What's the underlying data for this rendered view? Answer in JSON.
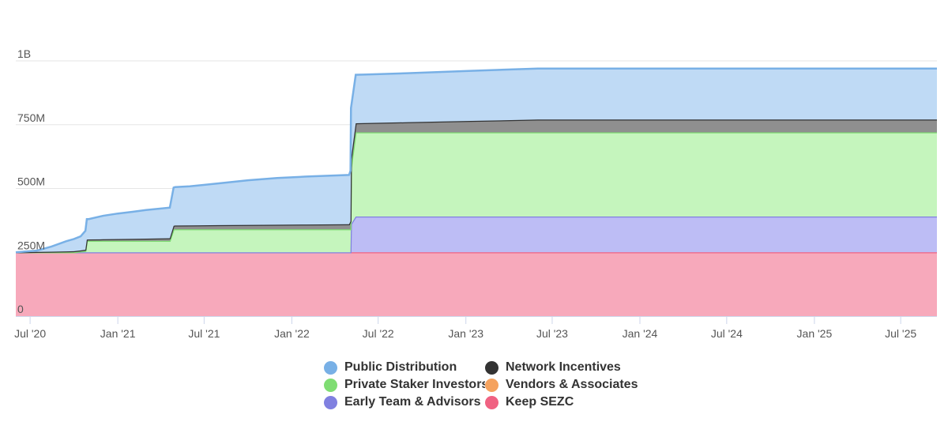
{
  "chart_data": {
    "type": "area",
    "stacked": true,
    "x_type": "date",
    "y_ticks": [
      {
        "value": 0,
        "label": "0"
      },
      {
        "value": 250000000,
        "label": "250M"
      },
      {
        "value": 500000000,
        "label": "500M"
      },
      {
        "value": 750000000,
        "label": "750M"
      },
      {
        "value": 1000000000,
        "label": "1B"
      }
    ],
    "ylim": [
      0,
      1000000000
    ],
    "xlim": [
      "2020-06-01",
      "2025-09-15"
    ],
    "x_ticks": [
      {
        "date": "2020-07-01",
        "label": "Jul '20"
      },
      {
        "date": "2021-01-01",
        "label": "Jan '21"
      },
      {
        "date": "2021-07-01",
        "label": "Jul '21"
      },
      {
        "date": "2022-01-01",
        "label": "Jan '22"
      },
      {
        "date": "2022-07-01",
        "label": "Jul '22"
      },
      {
        "date": "2023-01-01",
        "label": "Jan '23"
      },
      {
        "date": "2023-07-01",
        "label": "Jul '23"
      },
      {
        "date": "2024-01-01",
        "label": "Jan '24"
      },
      {
        "date": "2024-07-01",
        "label": "Jul '24"
      },
      {
        "date": "2025-01-01",
        "label": "Jan '25"
      },
      {
        "date": "2025-07-01",
        "label": "Jul '25"
      }
    ],
    "grid": true,
    "legend_position": "bottom",
    "series": [
      {
        "name": "Keep SEZC",
        "color": "#f7a9bb",
        "line_color": "#f06282",
        "points": [
          [
            "2020-06-01",
            250000000
          ],
          [
            "2025-09-15",
            250000000
          ]
        ]
      },
      {
        "name": "Vendors & Associates",
        "color": "#f7c79a",
        "line_color": "#f5a25e",
        "points": [
          [
            "2020-06-01",
            0
          ],
          [
            "2025-09-15",
            0
          ]
        ]
      },
      {
        "name": "Early Team & Advisors",
        "color": "#bdbdf5",
        "line_color": "#8080e0",
        "points": [
          [
            "2020-06-01",
            0
          ],
          [
            "2022-05-04",
            0
          ],
          [
            "2022-05-05",
            110000000
          ],
          [
            "2022-05-15",
            140000000
          ],
          [
            "2025-09-15",
            140000000
          ]
        ]
      },
      {
        "name": "Private Staker Investors",
        "color": "#c5f5bd",
        "line_color": "#7fdd73",
        "points": [
          [
            "2020-06-01",
            0
          ],
          [
            "2020-10-01",
            0
          ],
          [
            "2020-10-25",
            5000000
          ],
          [
            "2020-10-28",
            45000000
          ],
          [
            "2021-04-20",
            45000000
          ],
          [
            "2021-04-28",
            90000000
          ],
          [
            "2022-05-04",
            90000000
          ],
          [
            "2022-05-05",
            220000000
          ],
          [
            "2022-05-15",
            330000000
          ],
          [
            "2025-09-15",
            330000000
          ]
        ]
      },
      {
        "name": "Network Incentives",
        "color": "#8f8f8f",
        "line_color": "#333333",
        "points": [
          [
            "2020-06-01",
            0
          ],
          [
            "2020-10-28",
            5000000
          ],
          [
            "2021-04-20",
            10000000
          ],
          [
            "2021-05-01",
            15000000
          ],
          [
            "2022-05-01",
            20000000
          ],
          [
            "2022-05-05",
            35000000
          ],
          [
            "2023-06-01",
            50000000
          ],
          [
            "2025-09-15",
            50000000
          ]
        ]
      },
      {
        "name": "Public Distribution",
        "color": "#bfdaf5",
        "line_color": "#78b0e6",
        "points": [
          [
            "2020-06-01",
            0
          ],
          [
            "2020-07-15",
            5000000
          ],
          [
            "2020-08-15",
            20000000
          ],
          [
            "2020-09-15",
            40000000
          ],
          [
            "2020-10-15",
            55000000
          ],
          [
            "2020-10-28",
            80000000
          ],
          [
            "2020-11-01",
            80000000
          ],
          [
            "2020-12-01",
            92000000
          ],
          [
            "2021-01-01",
            100000000
          ],
          [
            "2021-02-01",
            106000000
          ],
          [
            "2021-03-01",
            112000000
          ],
          [
            "2021-04-20",
            120000000
          ],
          [
            "2021-04-28",
            150000000
          ],
          [
            "2021-06-01",
            153000000
          ],
          [
            "2021-08-01",
            164000000
          ],
          [
            "2021-10-01",
            175000000
          ],
          [
            "2021-12-01",
            183000000
          ],
          [
            "2022-02-01",
            188000000
          ],
          [
            "2022-05-01",
            193000000
          ],
          [
            "2022-05-05",
            200000000
          ],
          [
            "2022-05-15",
            190000000
          ],
          [
            "2022-06-01",
            190000000
          ],
          [
            "2022-09-01",
            192000000
          ],
          [
            "2023-01-01",
            196000000
          ],
          [
            "2023-06-01",
            200000000
          ],
          [
            "2025-09-15",
            200000000
          ]
        ]
      }
    ]
  },
  "legend": {
    "rows": [
      [
        {
          "name": "Public Distribution",
          "color": "#78b0e6"
        },
        {
          "name": "Network Incentives",
          "color": "#333333"
        }
      ],
      [
        {
          "name": "Private Staker Investors",
          "color": "#7fdd73"
        },
        {
          "name": "Vendors & Associates",
          "color": "#f5a25e"
        }
      ],
      [
        {
          "name": "Early Team & Advisors",
          "color": "#8080e0"
        },
        {
          "name": "Keep SEZC",
          "color": "#f06282"
        }
      ]
    ]
  }
}
